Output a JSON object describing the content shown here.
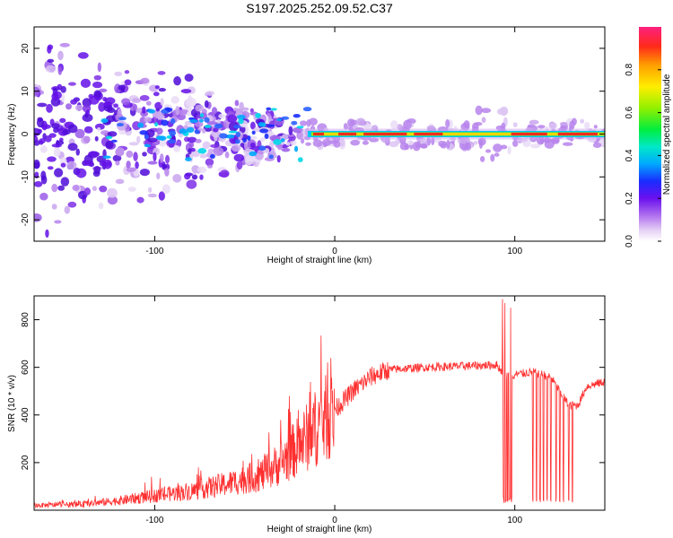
{
  "title": "S197.2025.252.09.52.C37",
  "chart_data": [
    {
      "type": "heatmap",
      "name": "spectrogram",
      "xlabel": "Height of straight line (km)",
      "ylabel": "Frequency (Hz)",
      "xlim": [
        -167,
        150
      ],
      "ylim": [
        -25,
        25
      ],
      "xticks": [
        -100,
        0,
        100
      ],
      "yticks": [
        -20,
        -10,
        0,
        10,
        20
      ],
      "colorbar": {
        "label": "Normalized spectral amplitude",
        "range": [
          0,
          1
        ],
        "ticks": [
          0.0,
          0.2,
          0.4,
          0.6,
          0.8
        ]
      },
      "features": [
        {
          "description": "scattered broadband energy",
          "x_range": [
            -167,
            -30
          ],
          "freq_spread_hz": [
            -25,
            25
          ]
        },
        {
          "description": "narrowband carrier line",
          "x_range": [
            -15,
            150
          ],
          "freq_hz": 0
        }
      ]
    },
    {
      "type": "line",
      "name": "snr",
      "xlabel": "Height of straight line (km)",
      "ylabel": "SNR (10 * v/v)",
      "xlim": [
        -167,
        150
      ],
      "ylim": [
        0,
        900
      ],
      "xticks": [
        -100,
        0,
        100
      ],
      "yticks": [
        200,
        400,
        600,
        800
      ],
      "color": "#ff3030",
      "envelope": {
        "x": [
          -167,
          -140,
          -120,
          -100,
          -80,
          -60,
          -40,
          -30,
          -20,
          -10,
          0,
          10,
          20,
          30,
          50,
          70,
          90,
          95,
          100,
          110,
          120,
          130,
          135,
          140,
          150
        ],
        "y": [
          20,
          25,
          40,
          60,
          80,
          110,
          150,
          200,
          270,
          350,
          420,
          500,
          560,
          590,
          600,
          605,
          610,
          560,
          570,
          580,
          560,
          440,
          440,
          520,
          540
        ]
      },
      "dropouts_x": [
        94,
        95,
        96,
        97,
        98,
        110,
        112,
        114,
        116,
        118,
        120,
        123,
        125,
        127,
        130,
        132
      ]
    }
  ]
}
